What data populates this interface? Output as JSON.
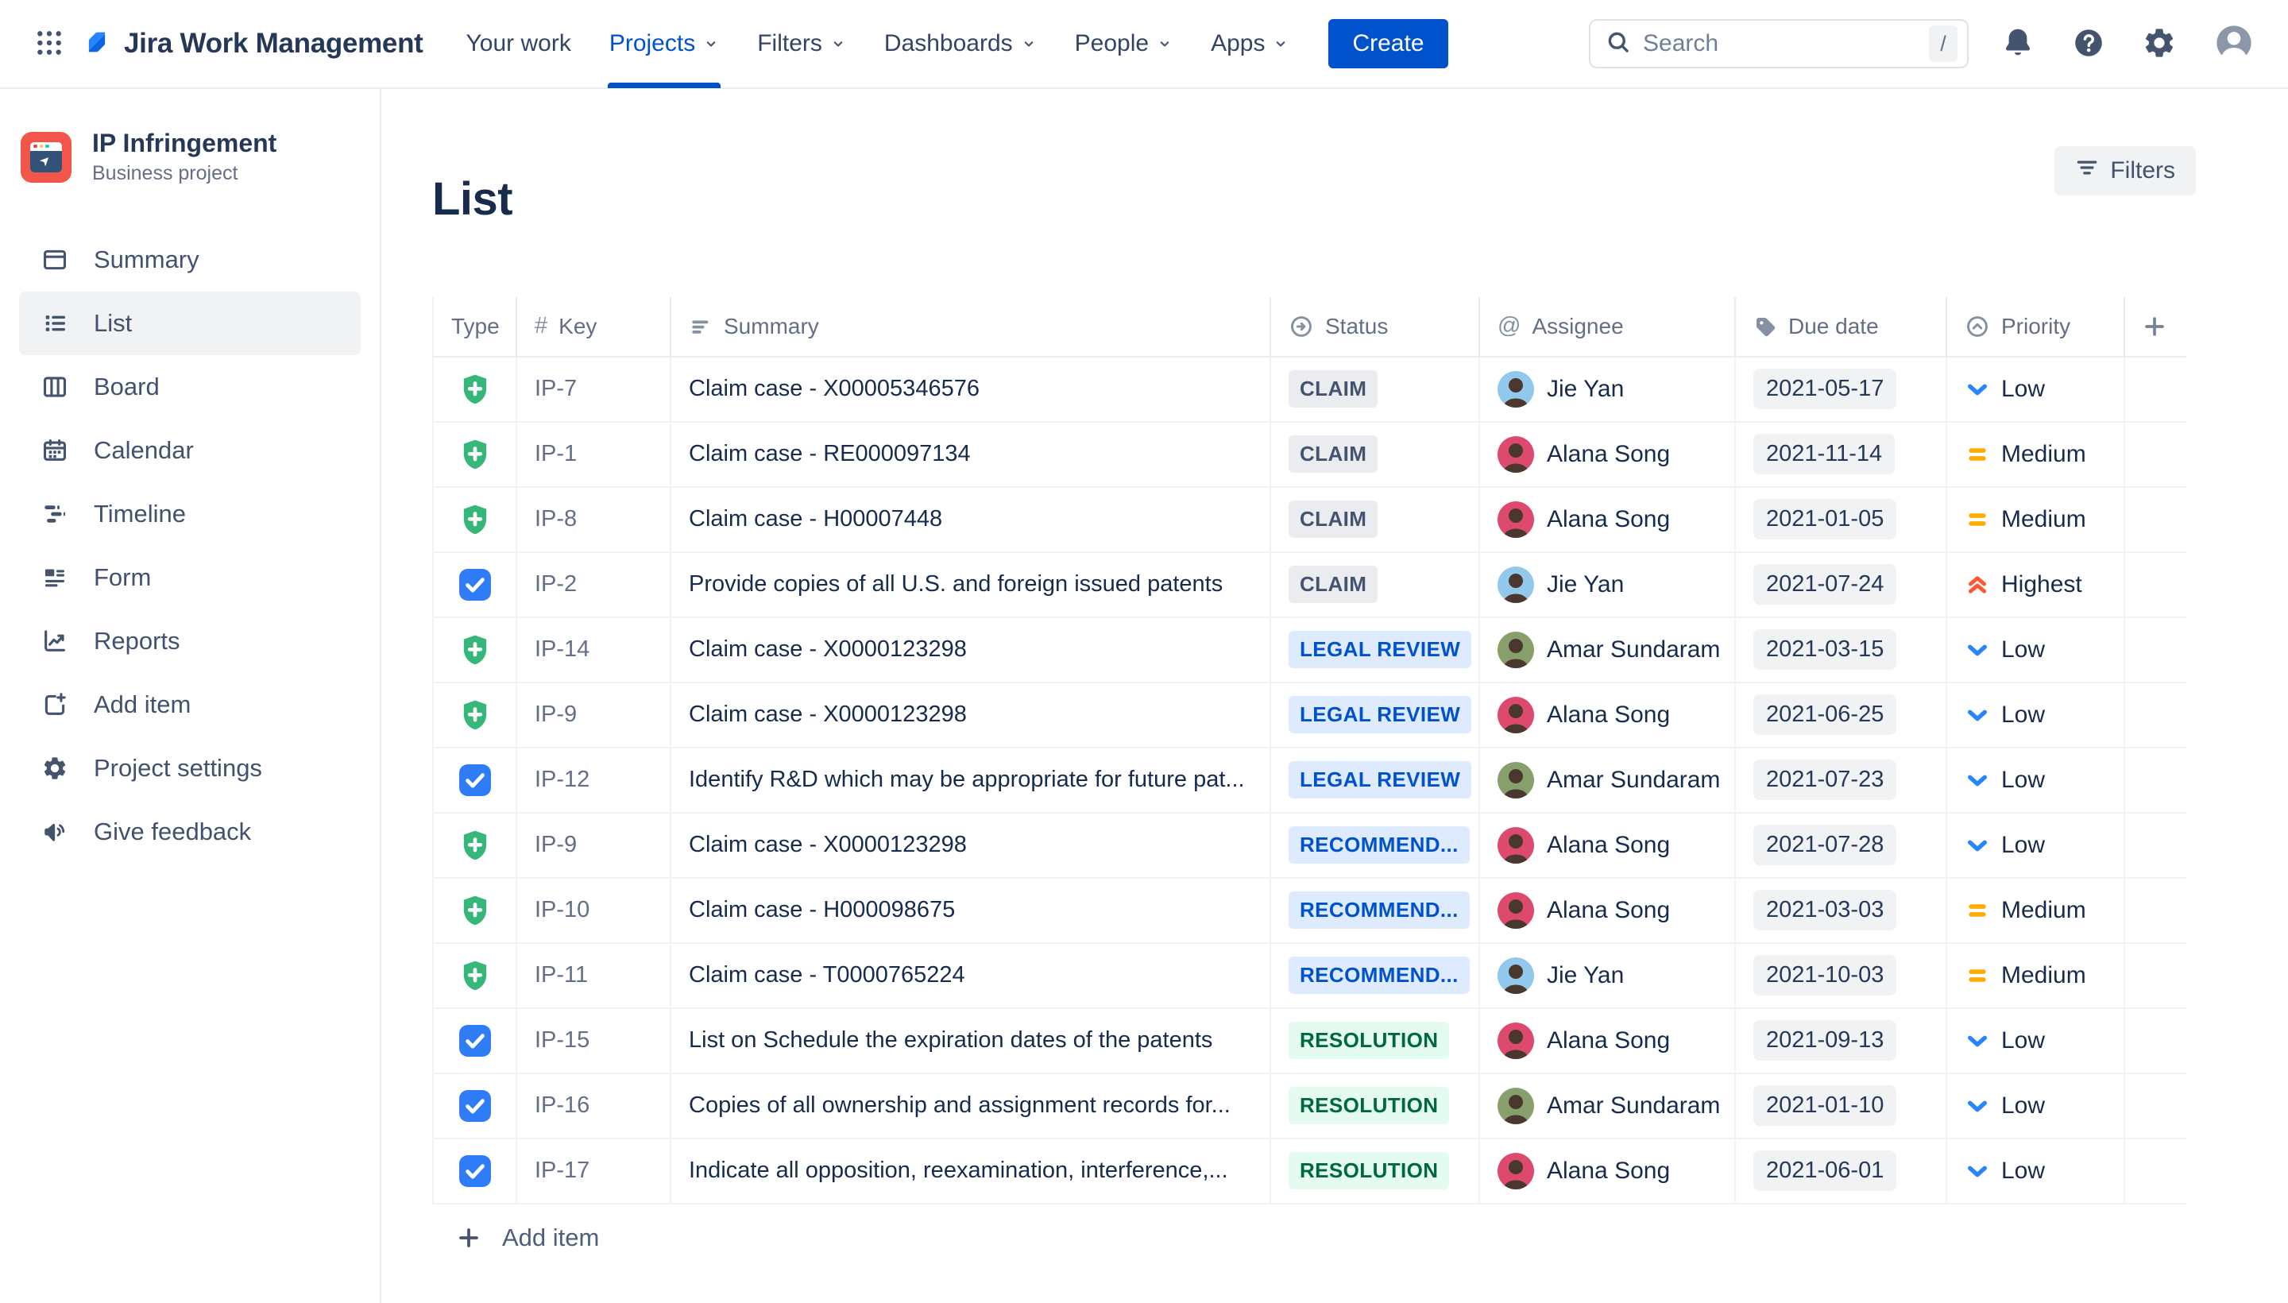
{
  "topnav": {
    "app_title": "Jira Work Management",
    "items": [
      {
        "label": "Your work",
        "dropdown": false,
        "active": false
      },
      {
        "label": "Projects",
        "dropdown": true,
        "active": true
      },
      {
        "label": "Filters",
        "dropdown": true,
        "active": false
      },
      {
        "label": "Dashboards",
        "dropdown": true,
        "active": false
      },
      {
        "label": "People",
        "dropdown": true,
        "active": false
      },
      {
        "label": "Apps",
        "dropdown": true,
        "active": false
      }
    ],
    "create_label": "Create",
    "search_placeholder": "Search",
    "search_shortcut": "/"
  },
  "sidebar": {
    "project_name": "IP Infringement",
    "project_type": "Business project",
    "items": [
      {
        "label": "Summary",
        "icon": "summary-window",
        "active": false
      },
      {
        "label": "List",
        "icon": "list-lines",
        "active": true
      },
      {
        "label": "Board",
        "icon": "board-columns",
        "active": false
      },
      {
        "label": "Calendar",
        "icon": "calendar",
        "active": false
      },
      {
        "label": "Timeline",
        "icon": "timeline-bars",
        "active": false
      },
      {
        "label": "Form",
        "icon": "form-doc",
        "active": false
      },
      {
        "label": "Reports",
        "icon": "reports-chart",
        "active": false
      },
      {
        "label": "Add item",
        "icon": "add-square",
        "active": false
      },
      {
        "label": "Project settings",
        "icon": "gear",
        "active": false
      },
      {
        "label": "Give feedback",
        "icon": "megaphone",
        "active": false
      }
    ]
  },
  "page": {
    "title": "List",
    "filters_label": "Filters"
  },
  "table": {
    "columns": [
      {
        "label": "Type",
        "icon": null
      },
      {
        "label": "Key",
        "icon": "hash"
      },
      {
        "label": "Summary",
        "icon": "text-lines"
      },
      {
        "label": "Status",
        "icon": "status-arrow"
      },
      {
        "label": "Assignee",
        "icon": "at"
      },
      {
        "label": "Due date",
        "icon": "tag"
      },
      {
        "label": "Priority",
        "icon": "chevron-circle"
      }
    ],
    "add_item_label": "Add item",
    "rows": [
      {
        "type": "shield-plus",
        "key": "IP-7",
        "summary": "Claim case - X00005346576",
        "status": "CLAIM",
        "status_style": "neutral",
        "assignee": "Jie Yan",
        "due": "2021-05-17",
        "priority": "Low",
        "priority_level": "low"
      },
      {
        "type": "shield-plus",
        "key": "IP-1",
        "summary": "Claim case - RE000097134",
        "status": "CLAIM",
        "status_style": "neutral",
        "assignee": "Alana Song",
        "due": "2021-11-14",
        "priority": "Medium",
        "priority_level": "medium"
      },
      {
        "type": "shield-plus",
        "key": "IP-8",
        "summary": "Claim case - H00007448",
        "status": "CLAIM",
        "status_style": "neutral",
        "assignee": "Alana Song",
        "due": "2021-01-05",
        "priority": "Medium",
        "priority_level": "medium"
      },
      {
        "type": "task-check",
        "key": "IP-2",
        "summary": "Provide copies of all U.S. and foreign issued patents",
        "status": "CLAIM",
        "status_style": "neutral",
        "assignee": "Jie Yan",
        "due": "2021-07-24",
        "priority": "Highest",
        "priority_level": "highest"
      },
      {
        "type": "shield-plus",
        "key": "IP-14",
        "summary": "Claim case - X0000123298",
        "status": "LEGAL REVIEW",
        "status_style": "info",
        "assignee": "Amar Sundaram",
        "due": "2021-03-15",
        "priority": "Low",
        "priority_level": "low"
      },
      {
        "type": "shield-plus",
        "key": "IP-9",
        "summary": "Claim case - X0000123298",
        "status": "LEGAL REVIEW",
        "status_style": "info",
        "assignee": "Alana Song",
        "due": "2021-06-25",
        "priority": "Low",
        "priority_level": "low"
      },
      {
        "type": "task-check",
        "key": "IP-12",
        "summary": "Identify R&D which may be appropriate for future pat...",
        "status": "LEGAL REVIEW",
        "status_style": "info",
        "assignee": "Amar Sundaram",
        "due": "2021-07-23",
        "priority": "Low",
        "priority_level": "low"
      },
      {
        "type": "shield-plus",
        "key": "IP-9",
        "summary": "Claim case - X0000123298",
        "status": "RECOMMEND...",
        "status_style": "info",
        "assignee": "Alana Song",
        "due": "2021-07-28",
        "priority": "Low",
        "priority_level": "low"
      },
      {
        "type": "shield-plus",
        "key": "IP-10",
        "summary": "Claim case - H000098675",
        "status": "RECOMMEND...",
        "status_style": "info",
        "assignee": "Alana Song",
        "due": "2021-03-03",
        "priority": "Medium",
        "priority_level": "medium"
      },
      {
        "type": "shield-plus",
        "key": "IP-11",
        "summary": "Claim case - T0000765224",
        "status": "RECOMMEND...",
        "status_style": "info",
        "assignee": "Jie Yan",
        "due": "2021-10-03",
        "priority": "Medium",
        "priority_level": "medium"
      },
      {
        "type": "task-check",
        "key": "IP-15",
        "summary": "List on Schedule the expiration dates of the patents",
        "status": "RESOLUTION",
        "status_style": "success",
        "assignee": "Alana Song",
        "due": "2021-09-13",
        "priority": "Low",
        "priority_level": "low"
      },
      {
        "type": "task-check",
        "key": "IP-16",
        "summary": "Copies of all ownership and assignment records for...",
        "status": "RESOLUTION",
        "status_style": "success",
        "assignee": "Amar Sundaram",
        "due": "2021-01-10",
        "priority": "Low",
        "priority_level": "low"
      },
      {
        "type": "task-check",
        "key": "IP-17",
        "summary": "Indicate all opposition, reexamination, interference,...",
        "status": "RESOLUTION",
        "status_style": "success",
        "assignee": "Alana Song",
        "due": "2021-06-01",
        "priority": "Low",
        "priority_level": "low"
      }
    ]
  },
  "people": {
    "Jie Yan": {
      "avatar_color": "#92C8EC"
    },
    "Alana Song": {
      "avatar_color": "#DE4A6E"
    },
    "Amar Sundaram": {
      "avatar_color": "#87A06B"
    }
  },
  "colors": {
    "accent_blue": "#0052CC",
    "status_neutral_bg": "#EBECF0",
    "status_neutral_text": "#44546F",
    "status_info_bg": "#DEEBFF",
    "status_info_text": "#0052CC",
    "status_success_bg": "#E3FCEF",
    "status_success_text": "#006644",
    "priority_low": "#2684FF",
    "priority_medium": "#FFAB00",
    "priority_highest": "#FF5630",
    "type_task_blue": "#2E7CF6",
    "type_claim_green": "#37B679",
    "project_avatar_bg": "#F25549"
  }
}
